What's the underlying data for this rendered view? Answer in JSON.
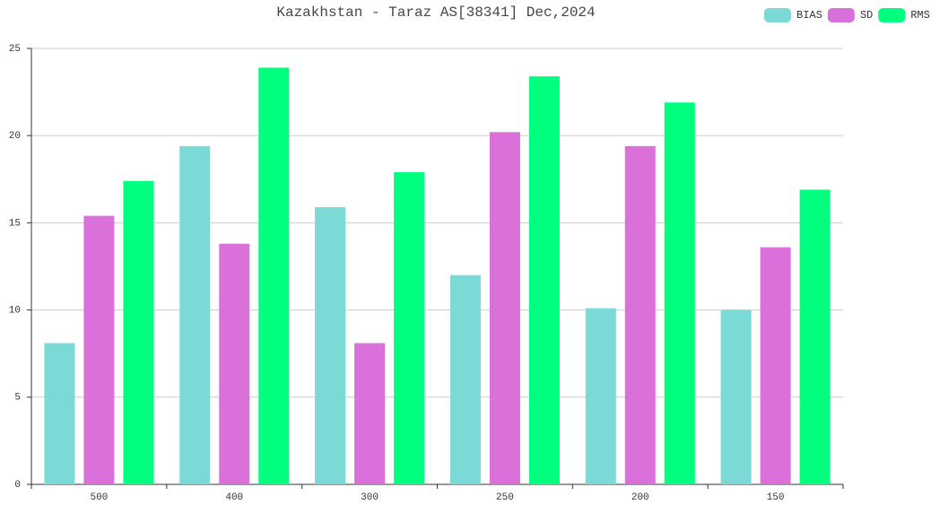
{
  "chart_data": {
    "type": "bar",
    "title": "Kazakhstan - Taraz AS[38341] Dec,2024",
    "categories": [
      "500",
      "400",
      "300",
      "250",
      "200",
      "150"
    ],
    "series": [
      {
        "name": "BIAS",
        "color": "#7bd9d6",
        "values": [
          8.1,
          19.4,
          15.9,
          12.0,
          10.1,
          10.0
        ]
      },
      {
        "name": "SD",
        "color": "#da70d9",
        "values": [
          15.4,
          13.8,
          8.1,
          20.2,
          19.4,
          13.6
        ]
      },
      {
        "name": "RMS",
        "color": "#00ff7f",
        "values": [
          17.4,
          23.9,
          17.9,
          23.4,
          21.9,
          16.9
        ]
      }
    ],
    "ylim": [
      0,
      25
    ],
    "yticks": [
      0,
      5,
      10,
      15,
      20,
      25
    ],
    "grid": true,
    "legend": "top-right"
  }
}
